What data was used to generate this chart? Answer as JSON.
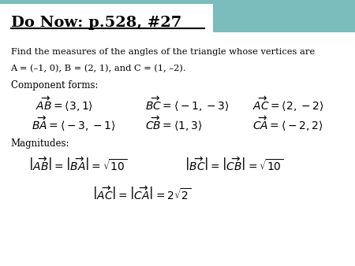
{
  "title": "Do Now: p.528, #27",
  "white_bg": "#ffffff",
  "teal_bg": "#7bbcbd",
  "title_color": "#000000",
  "body_color": "#000000",
  "line1": "Find the measures of the angles of the triangle whose vertices are",
  "line2": "A = (–1, 0), B = (2, 1), and C = (1, –2).",
  "comp_label": "Component forms:",
  "mag_label": "Magnitudes:"
}
